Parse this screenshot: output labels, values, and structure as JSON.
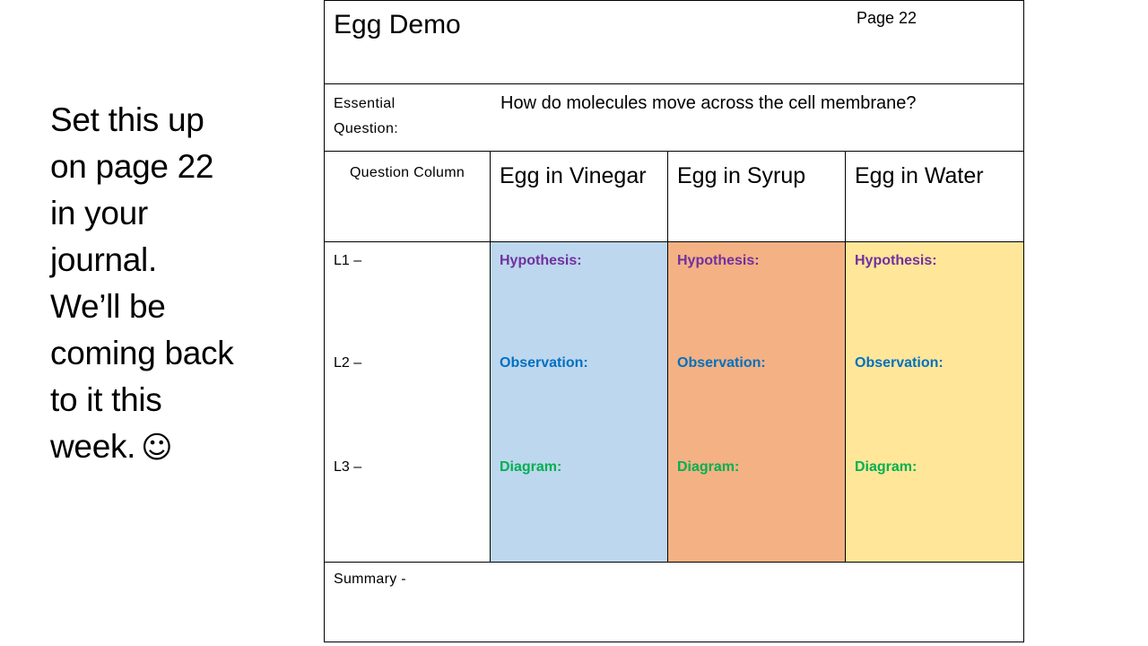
{
  "side_note": {
    "lines": [
      "Set this up",
      "on page 22",
      "in your",
      "journal.",
      "We’ll be",
      "coming back",
      "to it this",
      "week."
    ],
    "smiley": "☺"
  },
  "table": {
    "title": "Egg Demo",
    "page": "Page 22",
    "essential_label": "Essential Question:",
    "essential_question": "How do molecules move across the cell membrane?",
    "question_column_header": "Question Column",
    "columns": [
      "Egg in Vinegar",
      "Egg in Syrup",
      "Egg in Water"
    ],
    "levels": [
      "L1 –",
      "L2 –",
      "L3 –"
    ],
    "sections": {
      "hypothesis": "Hypothesis:",
      "observation": "Observation:",
      "diagram": "Diagram:"
    },
    "summary": "Summary -"
  },
  "colors": {
    "vinegar_fill": "#bdd7ee",
    "syrup_fill": "#f4b183",
    "water_fill": "#ffe699",
    "hypothesis_text": "#7030a0",
    "observation_text": "#0070c0",
    "diagram_text": "#00b050"
  }
}
